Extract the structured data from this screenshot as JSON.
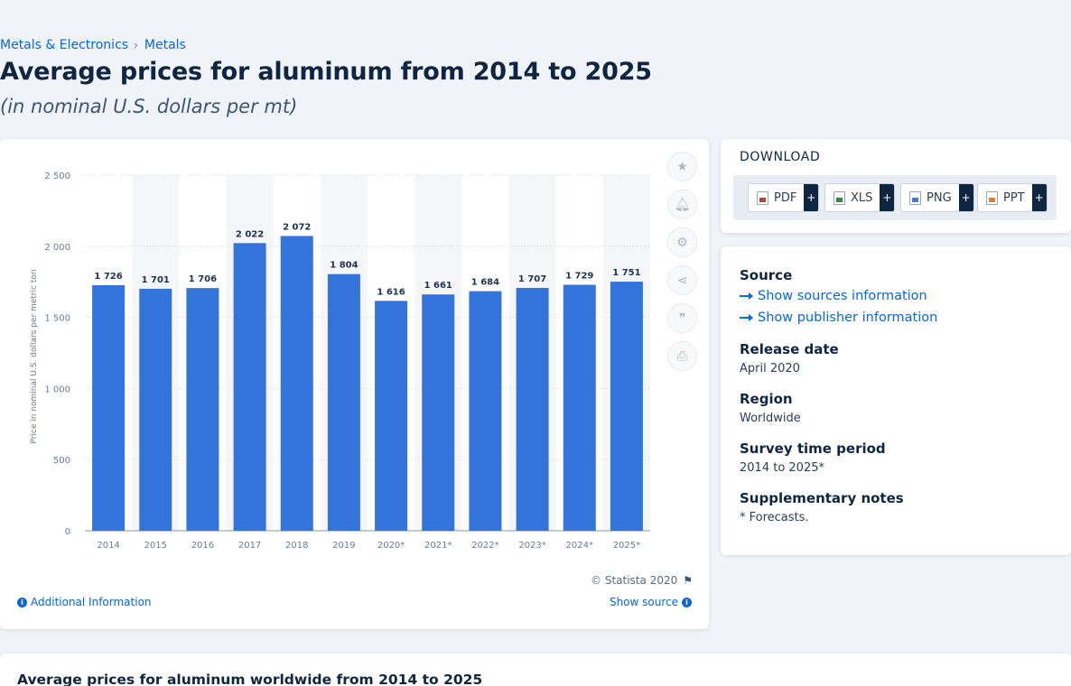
{
  "breadcrumb": {
    "level1": "Metals & Electronics",
    "separator": "›",
    "level2": "Metals"
  },
  "title": "Average prices for aluminum from 2014 to 2025",
  "subtitle": "(in nominal U.S. dollars per mt)",
  "chart_data": {
    "type": "bar",
    "categories": [
      "2014",
      "2015",
      "2016",
      "2017",
      "2018",
      "2019",
      "2020*",
      "2021*",
      "2022*",
      "2023*",
      "2024*",
      "2025*"
    ],
    "values": [
      1726,
      1701,
      1706,
      2022,
      2072,
      1804,
      1616,
      1661,
      1684,
      1707,
      1729,
      1751
    ],
    "value_labels": [
      "1 726",
      "1 701",
      "1 706",
      "2 022",
      "2 072",
      "1 804",
      "1 616",
      "1 661",
      "1 684",
      "1 707",
      "1 729",
      "1 751"
    ],
    "ylabel": "Price in nominal U.S. dollars per metric ton",
    "ylim": [
      0,
      2500
    ],
    "yticks": [
      0,
      500,
      1000,
      1500,
      2000,
      2500
    ],
    "ytick_labels": [
      "0",
      "500",
      "1 000",
      "1 500",
      "2 000",
      "2 500"
    ],
    "grid": true,
    "bar_color": "#3273dc"
  },
  "chart_footer": {
    "copyright": "© Statista 2020",
    "additional_info": "Additional Information",
    "show_source": "Show source"
  },
  "toolbar": {
    "icons": [
      "star-icon",
      "bell-icon",
      "gear-icon",
      "share-icon",
      "quote-icon",
      "print-icon"
    ]
  },
  "download": {
    "title": "DOWNLOAD",
    "buttons": [
      {
        "label": "PDF",
        "plus": "+"
      },
      {
        "label": "XLS",
        "plus": "+"
      },
      {
        "label": "PNG",
        "plus": "+"
      },
      {
        "label": "PPT",
        "plus": "+"
      }
    ]
  },
  "info": {
    "source_heading": "Source",
    "show_sources": "Show sources information",
    "show_publisher": "Show publisher information",
    "release_heading": "Release date",
    "release_value": "April 2020",
    "region_heading": "Region",
    "region_value": "Worldwide",
    "survey_heading": "Survey time period",
    "survey_value": "2014 to 2025*",
    "notes_heading": "Supplementary notes",
    "notes_value": "* Forecasts."
  },
  "bottom": {
    "title": "Average prices for aluminum worldwide from 2014 to 2025"
  },
  "colors": {
    "accent": "#0666e5",
    "bar": "#3273dc",
    "dark": "#0f2642"
  }
}
